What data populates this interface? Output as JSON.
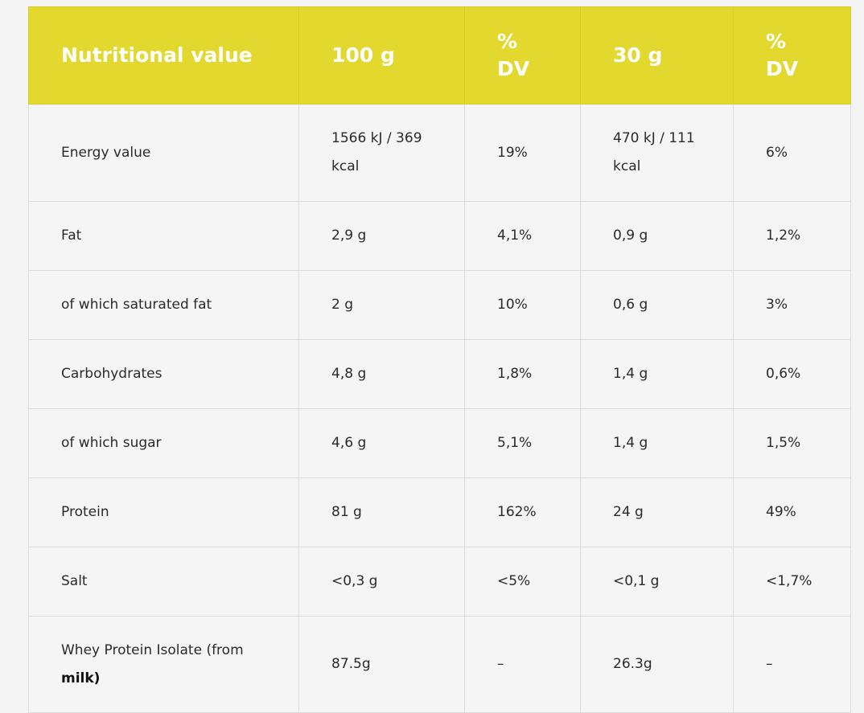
{
  "table": {
    "header": [
      "Nutritional value",
      "100 g",
      "% DV",
      "30 g",
      "% DV"
    ],
    "rows": [
      [
        "Energy value",
        "1566 kJ / 369 kcal",
        "19%",
        "470 kJ / 111 kcal",
        "6%"
      ],
      [
        "Fat",
        "2,9 g",
        "4,1%",
        "0,9 g",
        "1,2%"
      ],
      [
        "of which saturated fat",
        "2 g",
        "10%",
        "0,6 g",
        "3%"
      ],
      [
        "Carbohydrates",
        "4,8 g",
        "1,8%",
        "1,4 g",
        "0,6%"
      ],
      [
        "of which sugar",
        "4,6 g",
        "5,1%",
        "1,4 g",
        "1,5%"
      ],
      [
        "Protein",
        "81 g",
        "162%",
        "24 g",
        "49%"
      ],
      [
        "Salt",
        "<0,3 g",
        "<5%",
        "<0,1 g",
        "<1,7%"
      ],
      [
        [
          "Whey Protein Isolate (from",
          "milk)"
        ],
        "87.5g",
        "–",
        "26.3g",
        "–"
      ]
    ]
  }
}
